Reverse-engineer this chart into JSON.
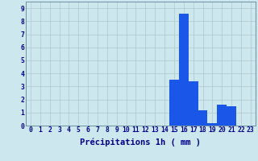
{
  "hours": [
    0,
    1,
    2,
    3,
    4,
    5,
    6,
    7,
    8,
    9,
    10,
    11,
    12,
    13,
    14,
    15,
    16,
    17,
    18,
    19,
    20,
    21,
    22,
    23
  ],
  "values": [
    0,
    0,
    0,
    0,
    0,
    0,
    0,
    0,
    0,
    0,
    0,
    0,
    0,
    0,
    0,
    3.5,
    8.6,
    3.4,
    1.2,
    0.2,
    1.6,
    1.5,
    0,
    0
  ],
  "bar_color": "#1a56e8",
  "background_color": "#cce8ee",
  "grid_color": "#b0c8cc",
  "xlabel": "Précipitations 1h ( mm )",
  "xlabel_color": "#00008B",
  "xlabel_fontsize": 7.5,
  "tick_color": "#00008B",
  "tick_fontsize": 5.8,
  "ylim": [
    0,
    9.5
  ],
  "yticks": [
    0,
    1,
    2,
    3,
    4,
    5,
    6,
    7,
    8,
    9
  ]
}
